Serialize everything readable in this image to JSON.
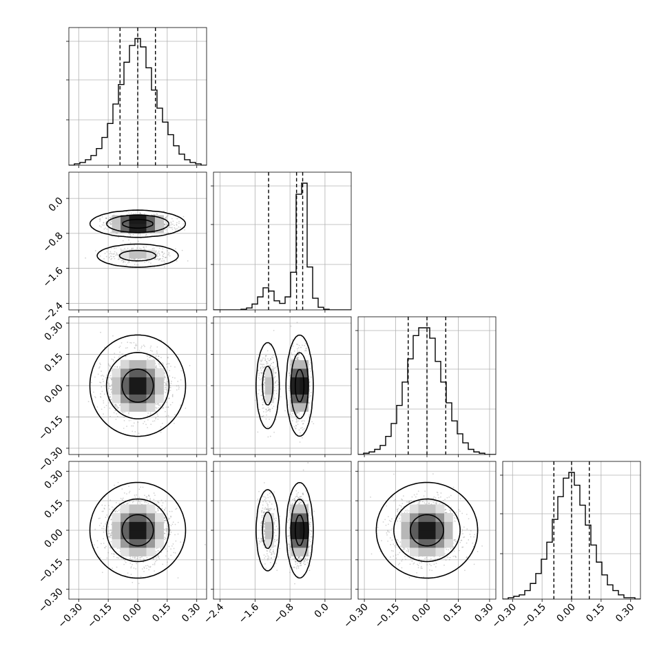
{
  "chart_data": {
    "type": "corner",
    "n_params": 4,
    "colors": {
      "ink": "#000000",
      "grid": "#b0b0b0",
      "samples": "#7a7a7a",
      "density": "#000000",
      "background": "#ffffff"
    },
    "grid": true,
    "ranges": [
      [
        -0.35,
        0.35
      ],
      [
        -2.55,
        0.6
      ],
      [
        -0.33,
        0.33
      ],
      [
        -0.35,
        0.35
      ]
    ],
    "ticks": [
      {
        "values": [
          -0.3,
          -0.15,
          0.0,
          0.15,
          0.3
        ],
        "labels": [
          "−0.30",
          "−0.15",
          "0.00",
          "0.15",
          "0.30"
        ]
      },
      {
        "values": [
          -2.4,
          -1.6,
          -0.8,
          0.0
        ],
        "labels": [
          "−2.4",
          "−1.6",
          "−0.8",
          "0.0"
        ]
      },
      {
        "values": [
          -0.3,
          -0.15,
          0.0,
          0.15,
          0.3
        ],
        "labels": [
          "−0.30",
          "−0.15",
          "0.00",
          "0.15",
          "0.30"
        ]
      },
      {
        "values": [
          -0.3,
          -0.15,
          0.0,
          0.15,
          0.3
        ],
        "labels": [
          "−0.30",
          "−0.15",
          "0.00",
          "0.15",
          "0.30"
        ]
      }
    ],
    "quantiles": [
      [
        -0.09,
        0.0,
        0.09
      ],
      [
        -1.29,
        -0.65,
        -0.51
      ],
      [
        -0.09,
        0.0,
        0.09
      ],
      [
        -0.09,
        0.0,
        0.09
      ]
    ],
    "histograms": [
      {
        "bins": [
          -0.35,
          0.35
        ],
        "counts": [
          0,
          1,
          2,
          4,
          7,
          12,
          20,
          30,
          44,
          58,
          74,
          86,
          91,
          85,
          70,
          54,
          41,
          31,
          22,
          14,
          8,
          4,
          2,
          1,
          0
        ]
      },
      {
        "bins": [
          -2.55,
          0.6
        ],
        "counts": [
          0,
          0,
          0,
          0,
          0,
          1,
          3,
          9,
          20,
          34,
          29,
          14,
          10,
          20,
          58,
          178,
          195,
          66,
          18,
          4,
          1,
          0,
          0,
          0,
          0
        ]
      },
      {
        "bins": [
          -0.33,
          0.33
        ],
        "counts": [
          0,
          1,
          2,
          4,
          7,
          14,
          24,
          38,
          56,
          74,
          92,
          98,
          98,
          90,
          72,
          56,
          40,
          26,
          16,
          9,
          4,
          2,
          1,
          0,
          0
        ]
      },
      {
        "bins": [
          -0.35,
          0.35
        ],
        "counts": [
          0,
          1,
          2,
          3,
          6,
          11,
          18,
          28,
          40,
          56,
          72,
          85,
          89,
          80,
          66,
          52,
          38,
          26,
          17,
          10,
          6,
          3,
          1,
          1,
          0
        ]
      }
    ],
    "modes": [
      {
        "center": [
          0.0,
          0.0
        ],
        "sigma": [
          0.08,
          0.08
        ],
        "weight": 1.0
      },
      {
        "center": [
          -1.31,
          -0.58
        ],
        "sigma": [
          0.1,
          0.1
        ],
        "weight": 0.28
      },
      {
        "center": [
          0.0,
          0.0
        ],
        "sigma": [
          0.08,
          0.08
        ],
        "weight": 1.0
      },
      {
        "center": [
          0.0,
          0.0
        ],
        "sigma": [
          0.08,
          0.08
        ],
        "weight": 1.0
      }
    ],
    "param_sigma": [
      {
        "s": [
          0.08,
          0.08
        ]
      },
      {
        "s": [
          0.1,
          0.1
        ]
      },
      {
        "s": [
          0.08,
          0.08
        ]
      },
      {
        "s": [
          0.08,
          0.08
        ]
      }
    ],
    "contour_levels": [
      0.39,
      0.86,
      0.99
    ]
  }
}
